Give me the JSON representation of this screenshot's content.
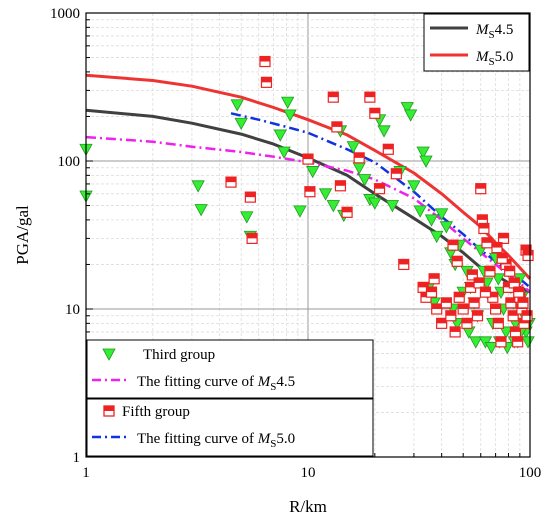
{
  "chart_data": {
    "type": "scatter",
    "xlabel": "R/km",
    "ylabel": "PGA/gal",
    "xscale": "log",
    "yscale": "log",
    "xlim": [
      1,
      100
    ],
    "ylim": [
      1,
      1000
    ],
    "x_ticks": [
      "1",
      "10",
      "100"
    ],
    "y_ticks": [
      "1",
      "10",
      "100",
      "1000"
    ],
    "grid": true,
    "legends": {
      "top_right": [
        {
          "key": "ms45",
          "prefix": "M",
          "sub": "S",
          "suffix": "4.5",
          "color": "#404040"
        },
        {
          "key": "ms50",
          "prefix": "M",
          "sub": "S",
          "suffix": "5.0",
          "color": "#ee3333"
        }
      ],
      "bottom_left": [
        {
          "key": "third",
          "text": "Third group",
          "marker": "triangle-down"
        },
        {
          "key": "fit45",
          "text": "The fitting curve of ",
          "prefix": "M",
          "sub": "S",
          "suffix": "4.5"
        },
        {
          "key": "fifth",
          "text": "Fifth group",
          "marker": "square"
        },
        {
          "key": "fit50",
          "text": "The fitting curve of ",
          "prefix": "M",
          "sub": "S",
          "suffix": "5.0"
        }
      ]
    },
    "series": [
      {
        "name": "MS4.5",
        "style": "solid",
        "color": "#404040",
        "points": [
          [
            1,
            220
          ],
          [
            2,
            200
          ],
          [
            3,
            180
          ],
          [
            5,
            152
          ],
          [
            7,
            130
          ],
          [
            10,
            105
          ],
          [
            15,
            80
          ],
          [
            20,
            60
          ],
          [
            30,
            41
          ],
          [
            40,
            31
          ],
          [
            50,
            24
          ],
          [
            60,
            19
          ],
          [
            70,
            17
          ],
          [
            80,
            15
          ],
          [
            90,
            14
          ],
          [
            100,
            13
          ]
        ]
      },
      {
        "name": "MS5.0",
        "style": "solid",
        "color": "#ee3333",
        "points": [
          [
            1,
            380
          ],
          [
            2,
            350
          ],
          [
            3,
            320
          ],
          [
            5,
            270
          ],
          [
            7,
            230
          ],
          [
            10,
            190
          ],
          [
            15,
            150
          ],
          [
            20,
            118
          ],
          [
            30,
            83
          ],
          [
            40,
            60
          ],
          [
            50,
            45
          ],
          [
            60,
            36
          ],
          [
            70,
            28
          ],
          [
            80,
            23
          ],
          [
            90,
            19
          ],
          [
            100,
            16
          ]
        ]
      },
      {
        "name": "The fitting curve of MS4.5",
        "style": "dashdot",
        "color": "#ee22ee",
        "points": [
          [
            1,
            145
          ],
          [
            2,
            135
          ],
          [
            3,
            125
          ],
          [
            5,
            115
          ],
          [
            7,
            107
          ],
          [
            10,
            98
          ],
          [
            15,
            86
          ],
          [
            20,
            75
          ],
          [
            30,
            56
          ],
          [
            40,
            40
          ],
          [
            50,
            30
          ],
          [
            60,
            24
          ],
          [
            70,
            20
          ],
          [
            80,
            17
          ],
          [
            90,
            15
          ],
          [
            100,
            13
          ]
        ]
      },
      {
        "name": "The fitting curve of MS5.0",
        "style": "dashdot",
        "color": "#1133dd",
        "points": [
          [
            4.5,
            210
          ],
          [
            6,
            190
          ],
          [
            8,
            170
          ],
          [
            10,
            155
          ],
          [
            15,
            120
          ],
          [
            20,
            98
          ],
          [
            30,
            62
          ],
          [
            40,
            42
          ],
          [
            50,
            32
          ],
          [
            60,
            25
          ],
          [
            70,
            21
          ],
          [
            80,
            18
          ],
          [
            90,
            16
          ],
          [
            100,
            14
          ]
        ]
      },
      {
        "name": "Third group",
        "style": "marker",
        "marker": "triangle-down",
        "color": "#33ee33",
        "points": [
          [
            1,
            120
          ],
          [
            1,
            58
          ],
          [
            3.2,
            68
          ],
          [
            3.3,
            47
          ],
          [
            4.8,
            240
          ],
          [
            5,
            180
          ],
          [
            5.3,
            42
          ],
          [
            5.5,
            31
          ],
          [
            7.5,
            150
          ],
          [
            7.8,
            115
          ],
          [
            8.1,
            250
          ],
          [
            8.3,
            205
          ],
          [
            9.2,
            46
          ],
          [
            10.5,
            85
          ],
          [
            12,
            60
          ],
          [
            13,
            50
          ],
          [
            14,
            160
          ],
          [
            14.5,
            43
          ],
          [
            16,
            125
          ],
          [
            17,
            90
          ],
          [
            18,
            75
          ],
          [
            19,
            55
          ],
          [
            20,
            52
          ],
          [
            21,
            190
          ],
          [
            22,
            160
          ],
          [
            24,
            50
          ],
          [
            26,
            85
          ],
          [
            28,
            230
          ],
          [
            29,
            205
          ],
          [
            30,
            68
          ],
          [
            32,
            46
          ],
          [
            33,
            115
          ],
          [
            34,
            100
          ],
          [
            36,
            40
          ],
          [
            38,
            31
          ],
          [
            40,
            44
          ],
          [
            42,
            36
          ],
          [
            44,
            24
          ],
          [
            46,
            20
          ],
          [
            48,
            27
          ],
          [
            50,
            13
          ],
          [
            52,
            18
          ],
          [
            54,
            14
          ],
          [
            56,
            11
          ],
          [
            58,
            9
          ],
          [
            60,
            25
          ],
          [
            62,
            18
          ],
          [
            64,
            15
          ],
          [
            66,
            12
          ],
          [
            68,
            8
          ],
          [
            70,
            22
          ],
          [
            72,
            16
          ],
          [
            74,
            13
          ],
          [
            76,
            10
          ],
          [
            78,
            7
          ],
          [
            80,
            18
          ],
          [
            82,
            14
          ],
          [
            84,
            11
          ],
          [
            86,
            8
          ],
          [
            88,
            6
          ],
          [
            90,
            16
          ],
          [
            92,
            12
          ],
          [
            94,
            9
          ],
          [
            96,
            7
          ],
          [
            98,
            6
          ],
          [
            35,
            14
          ],
          [
            37,
            11
          ],
          [
            45,
            10
          ],
          [
            47,
            8
          ],
          [
            53,
            7
          ],
          [
            57,
            6
          ],
          [
            63,
            6
          ],
          [
            67,
            5.5
          ],
          [
            73,
            6
          ],
          [
            79,
            5.5
          ],
          [
            85,
            6
          ],
          [
            91,
            7
          ],
          [
            99,
            8
          ]
        ]
      },
      {
        "name": "Fifth group",
        "style": "marker",
        "marker": "square",
        "color": "#ee2222",
        "points": [
          [
            4.5,
            72
          ],
          [
            5.5,
            57
          ],
          [
            5.6,
            30
          ],
          [
            6.4,
            470
          ],
          [
            6.5,
            340
          ],
          [
            10,
            103
          ],
          [
            10.2,
            62
          ],
          [
            13,
            270
          ],
          [
            13.5,
            170
          ],
          [
            14,
            68
          ],
          [
            15,
            45
          ],
          [
            17,
            105
          ],
          [
            19,
            270
          ],
          [
            20,
            210
          ],
          [
            21,
            65
          ],
          [
            23,
            120
          ],
          [
            25,
            82
          ],
          [
            27,
            20
          ],
          [
            33,
            14
          ],
          [
            34,
            12
          ],
          [
            36,
            13
          ],
          [
            38,
            10
          ],
          [
            40,
            8
          ],
          [
            42,
            11
          ],
          [
            44,
            9
          ],
          [
            46,
            7
          ],
          [
            48,
            12
          ],
          [
            50,
            10
          ],
          [
            52,
            8
          ],
          [
            54,
            14
          ],
          [
            56,
            11
          ],
          [
            58,
            9
          ],
          [
            60,
            65
          ],
          [
            61,
            40
          ],
          [
            62,
            35
          ],
          [
            64,
            28
          ],
          [
            66,
            18
          ],
          [
            68,
            12
          ],
          [
            70,
            10
          ],
          [
            72,
            8
          ],
          [
            74,
            6
          ],
          [
            76,
            30
          ],
          [
            78,
            20
          ],
          [
            80,
            14
          ],
          [
            82,
            11
          ],
          [
            84,
            9
          ],
          [
            86,
            7
          ],
          [
            88,
            6
          ],
          [
            90,
            12
          ],
          [
            92,
            10
          ],
          [
            94,
            8
          ],
          [
            96,
            25
          ],
          [
            98,
            23
          ],
          [
            37,
            16
          ],
          [
            45,
            27
          ],
          [
            47,
            21
          ],
          [
            55,
            17
          ],
          [
            59,
            15
          ],
          [
            63,
            13
          ],
          [
            71,
            26
          ],
          [
            75,
            22
          ],
          [
            81,
            18
          ],
          [
            85,
            15
          ],
          [
            89,
            13
          ],
          [
            93,
            11
          ],
          [
            97,
            9
          ]
        ]
      }
    ]
  }
}
